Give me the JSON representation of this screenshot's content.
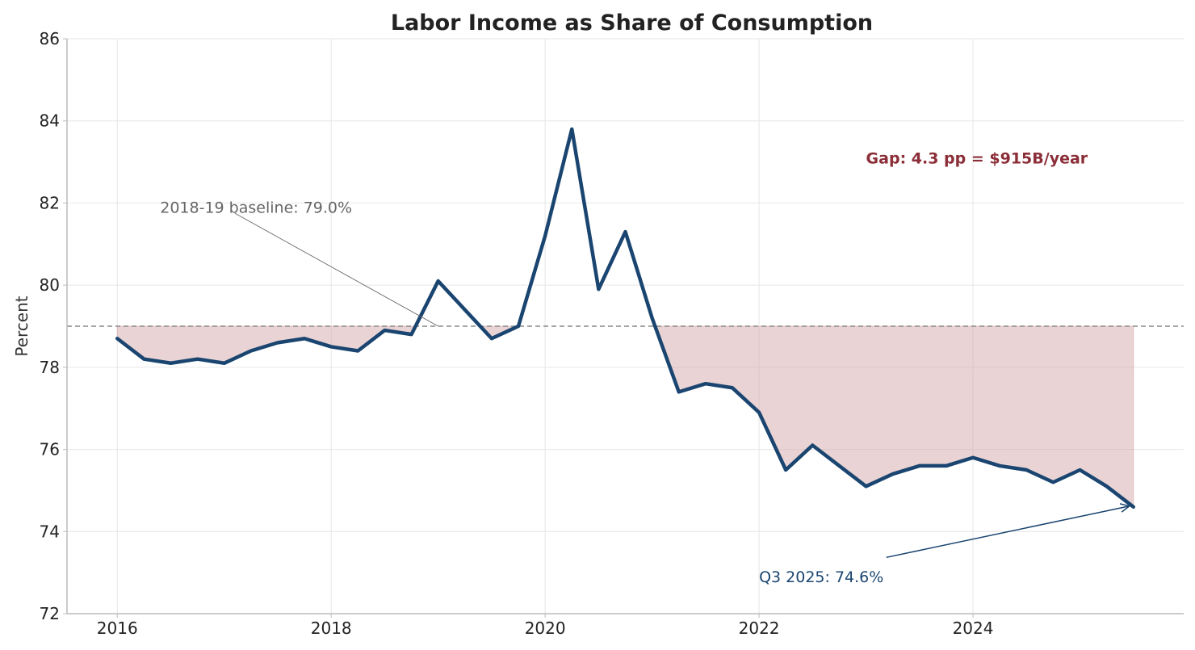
{
  "chart_data": {
    "type": "line",
    "title": "Labor Income as Share of Consumption",
    "xlabel": "",
    "ylabel": "Percent",
    "xlim": [
      2015.53,
      2025.97
    ],
    "ylim": [
      72,
      86
    ],
    "x_ticks": [
      2016,
      2018,
      2020,
      2022,
      2024
    ],
    "y_ticks": [
      72,
      74,
      76,
      78,
      80,
      82,
      84,
      86
    ],
    "grid": true,
    "baseline": {
      "value": 79.0,
      "style": "dashed",
      "color": "#888888"
    },
    "fill_between": {
      "between": "series and baseline",
      "where": "series below baseline",
      "color": "#d3a7a9"
    },
    "series": [
      {
        "color": "#1a4570",
        "x": [
          2016.0,
          2016.25,
          2016.5,
          2016.75,
          2017.0,
          2017.25,
          2017.5,
          2017.75,
          2018.0,
          2018.25,
          2018.5,
          2018.75,
          2019.0,
          2019.25,
          2019.5,
          2019.75,
          2020.0,
          2020.25,
          2020.5,
          2020.75,
          2021.0,
          2021.25,
          2021.5,
          2021.75,
          2022.0,
          2022.25,
          2022.5,
          2022.75,
          2023.0,
          2023.25,
          2023.5,
          2023.75,
          2024.0,
          2024.25,
          2024.5,
          2024.75,
          2025.0,
          2025.25,
          2025.5
        ],
        "y": [
          78.7,
          78.2,
          78.1,
          78.2,
          78.1,
          78.4,
          78.6,
          78.7,
          78.5,
          78.4,
          78.9,
          78.8,
          80.1,
          79.4,
          78.7,
          79.0,
          81.2,
          83.8,
          79.9,
          81.3,
          79.2,
          77.4,
          77.6,
          77.5,
          76.9,
          75.5,
          76.1,
          75.6,
          75.1,
          75.4,
          75.6,
          75.6,
          75.8,
          75.6,
          75.5,
          75.2,
          75.5,
          75.1,
          74.6
        ]
      }
    ],
    "annotations": [
      {
        "text": "2018-19 baseline: 79.0%",
        "text_at": [
          2016.4,
          81.9
        ],
        "arrow_to": [
          2019.0,
          79.0
        ],
        "color": "#666666"
      },
      {
        "text": "Gap: 4.3 pp = $915B/year",
        "text_at": [
          2023.0,
          83.1
        ],
        "color": "#8b2e38",
        "bold": true
      },
      {
        "text": "Q3 2025: 74.6%",
        "text_at": [
          2022.0,
          72.9
        ],
        "arrow_to": [
          2025.5,
          74.6
        ],
        "color": "#1a4570"
      }
    ]
  }
}
